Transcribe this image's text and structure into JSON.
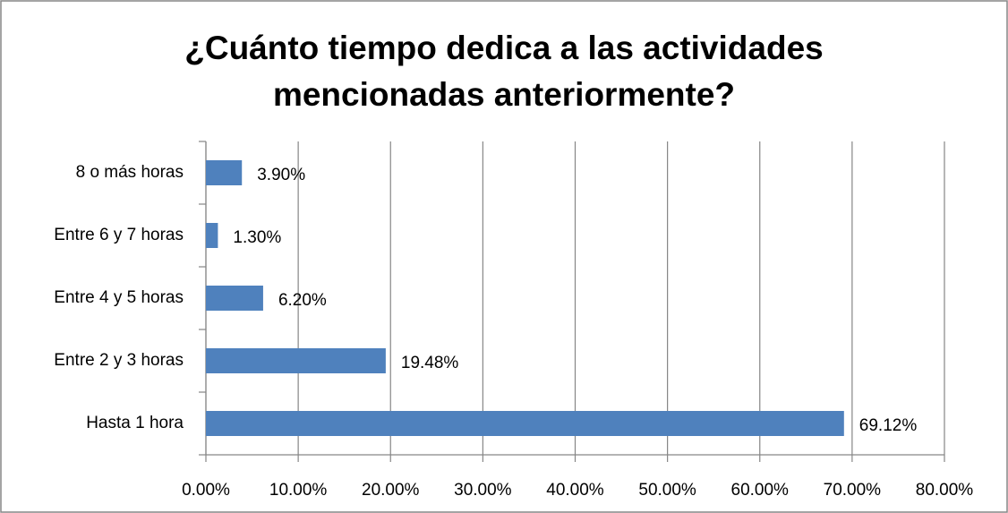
{
  "chart_data": {
    "type": "bar",
    "orientation": "horizontal",
    "title": "¿Cuánto tiempo dedica a las actividades mencionadas anteriormente?",
    "categories": [
      "Hasta 1 hora",
      "Entre 2 y 3 horas",
      "Entre 4 y 5 horas",
      "Entre 6 y 7 horas",
      "8 o más horas"
    ],
    "values": [
      69.12,
      19.48,
      6.2,
      1.3,
      3.9
    ],
    "value_labels": [
      "69.12%",
      "19.48%",
      "6.20%",
      "1.30%",
      "3.90%"
    ],
    "color": "#4f81bd",
    "xlim": [
      0,
      80
    ],
    "xticks": [
      {
        "value": 0,
        "label": "0.00%"
      },
      {
        "value": 10,
        "label": "10.00%"
      },
      {
        "value": 20,
        "label": "20.00%"
      },
      {
        "value": 30,
        "label": "30.00%"
      },
      {
        "value": 40,
        "label": "40.00%"
      },
      {
        "value": 50,
        "label": "50.00%"
      },
      {
        "value": 60,
        "label": "60.00%"
      },
      {
        "value": 70,
        "label": "70.00%"
      },
      {
        "value": 80,
        "label": "80.00%"
      }
    ],
    "grid": true
  }
}
